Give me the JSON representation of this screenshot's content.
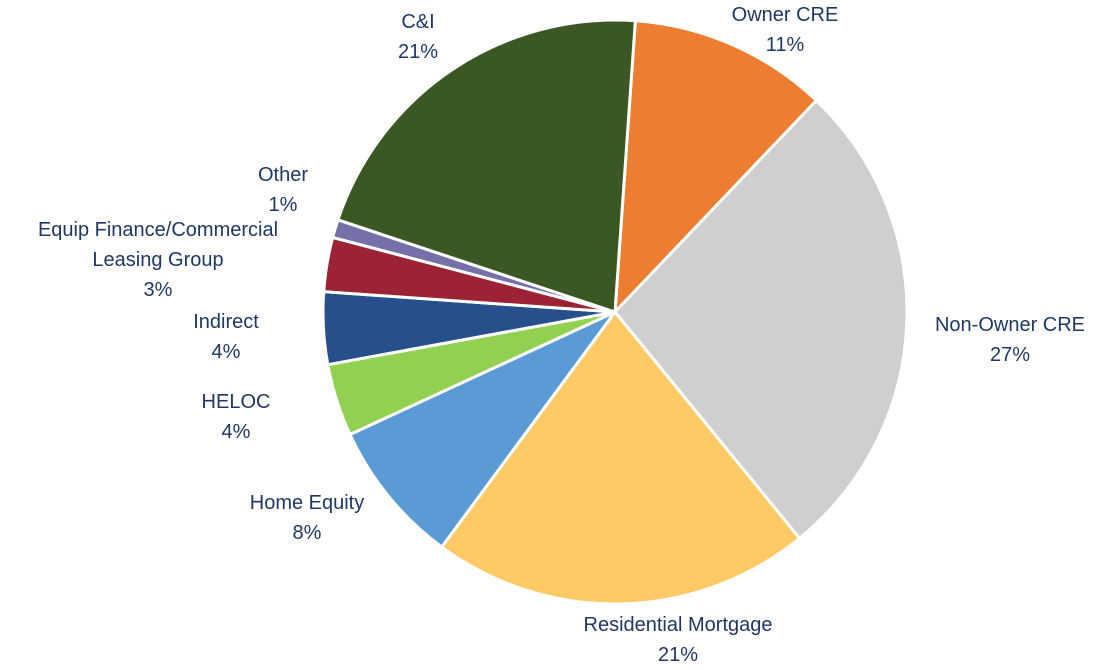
{
  "chart_data": {
    "type": "pie",
    "categories": [
      "Owner CRE",
      "Non-Owner CRE",
      "Residential Mortgage",
      "Home Equity",
      "HELOC",
      "Indirect",
      "Equip Finance/Commercial Leasing Group",
      "Other",
      "C&I"
    ],
    "values": [
      11,
      27,
      21,
      8,
      4,
      4,
      3,
      1,
      21
    ],
    "value_labels": [
      "11%",
      "27%",
      "21%",
      "8%",
      "4%",
      "4%",
      "3%",
      "1%",
      "21%"
    ],
    "colors": [
      "#ed7d31",
      "#d0cece",
      "#ffc966",
      "#5b9bd5",
      "#92d050",
      "#264f8c",
      "#9b2335",
      "#7670a8",
      "#3b5723"
    ]
  }
}
